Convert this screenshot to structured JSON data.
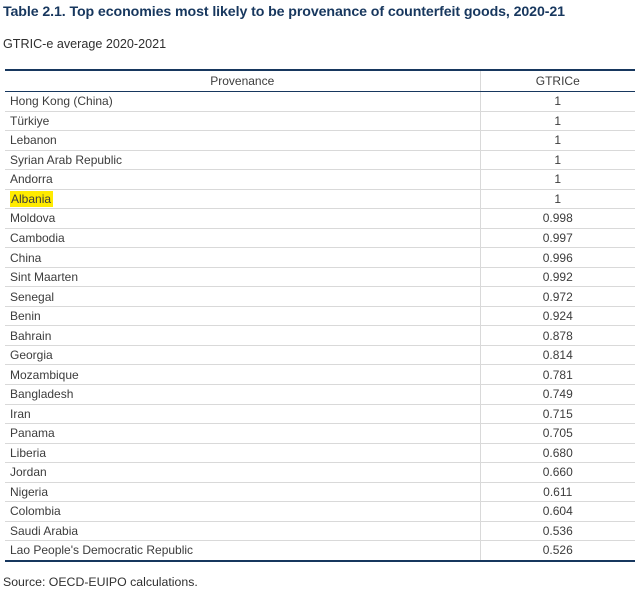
{
  "page": {
    "title": "Table 2.1. Top economies most likely to be provenance of counterfeit goods, 2020-21",
    "subtitle": "GTRIC-e average 2020-2021",
    "source": "Source: OECD-EUIPO calculations."
  },
  "colors": {
    "title_navy": "#17375E",
    "heavy_border": "#17375E",
    "light_divider": "#D9D9D9",
    "highlight_yellow": "#FFEB00",
    "body_text": "#3C3C3C"
  },
  "table": {
    "columns": [
      {
        "label": "Provenance"
      },
      {
        "label": "GTRICe"
      }
    ],
    "rows": [
      {
        "provenance": "Hong Kong (China)",
        "gtrice": "1",
        "highlighted": false
      },
      {
        "provenance": "Türkiye",
        "gtrice": "1",
        "highlighted": false
      },
      {
        "provenance": "Lebanon",
        "gtrice": "1",
        "highlighted": false
      },
      {
        "provenance": "Syrian Arab Republic",
        "gtrice": "1",
        "highlighted": false
      },
      {
        "provenance": "Andorra",
        "gtrice": "1",
        "highlighted": false
      },
      {
        "provenance": "Albania",
        "gtrice": "1",
        "highlighted": true
      },
      {
        "provenance": "Moldova",
        "gtrice": "0.998",
        "highlighted": false
      },
      {
        "provenance": "Cambodia",
        "gtrice": "0.997",
        "highlighted": false
      },
      {
        "provenance": "China",
        "gtrice": "0.996",
        "highlighted": false
      },
      {
        "provenance": "Sint Maarten",
        "gtrice": "0.992",
        "highlighted": false
      },
      {
        "provenance": "Senegal",
        "gtrice": "0.972",
        "highlighted": false
      },
      {
        "provenance": "Benin",
        "gtrice": "0.924",
        "highlighted": false
      },
      {
        "provenance": "Bahrain",
        "gtrice": "0.878",
        "highlighted": false
      },
      {
        "provenance": "Georgia",
        "gtrice": "0.814",
        "highlighted": false
      },
      {
        "provenance": "Mozambique",
        "gtrice": "0.781",
        "highlighted": false
      },
      {
        "provenance": "Bangladesh",
        "gtrice": "0.749",
        "highlighted": false
      },
      {
        "provenance": "Iran",
        "gtrice": "0.715",
        "highlighted": false
      },
      {
        "provenance": "Panama",
        "gtrice": "0.705",
        "highlighted": false
      },
      {
        "provenance": "Liberia",
        "gtrice": "0.680",
        "highlighted": false
      },
      {
        "provenance": "Jordan",
        "gtrice": "0.660",
        "highlighted": false
      },
      {
        "provenance": "Nigeria",
        "gtrice": "0.611",
        "highlighted": false
      },
      {
        "provenance": "Colombia",
        "gtrice": "0.604",
        "highlighted": false
      },
      {
        "provenance": "Saudi Arabia",
        "gtrice": "0.536",
        "highlighted": false
      },
      {
        "provenance": "Lao People's Democratic Republic",
        "gtrice": "0.526",
        "highlighted": false
      }
    ]
  }
}
